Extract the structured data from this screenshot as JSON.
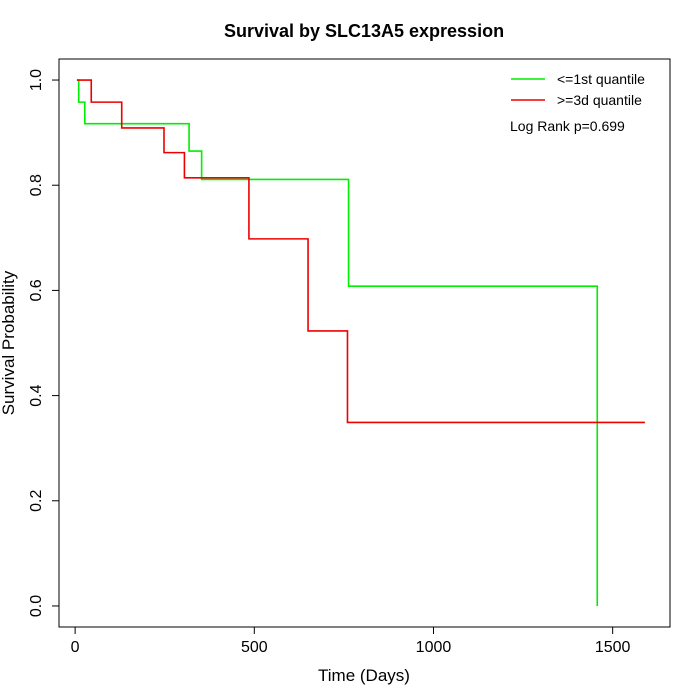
{
  "chart_data": {
    "type": "line",
    "title": "Survival by SLC13A5 expression",
    "xlabel": "Time (Days)",
    "ylabel": "Survival Probability",
    "xlim": [
      -45,
      1660
    ],
    "ylim": [
      -0.04,
      1.04
    ],
    "x_ticks": [
      0,
      500,
      1000,
      1500
    ],
    "y_ticks": [
      0.0,
      0.2,
      0.4,
      0.6,
      0.8,
      1.0
    ],
    "x_tick_labels": [
      "0",
      "500",
      "1000",
      "1500"
    ],
    "y_tick_labels": [
      "0.0",
      "0.2",
      "0.4",
      "0.6",
      "0.8",
      "1.0"
    ],
    "grid": false,
    "legend_position": "top-right",
    "annotation": "Log Rank p=0.699",
    "series": [
      {
        "name": "<=1st quantile",
        "color": "#00ee00",
        "step_points": [
          [
            5,
            1.0
          ],
          [
            10,
            0.958
          ],
          [
            27,
            0.917
          ],
          [
            318,
            0.865
          ],
          [
            353,
            0.811
          ],
          [
            763,
            0.608
          ],
          [
            1457,
            0.0
          ]
        ]
      },
      {
        "name": ">=3d quantile",
        "color": "#ee0000",
        "step_points": [
          [
            5,
            1.0
          ],
          [
            45,
            0.958
          ],
          [
            130,
            0.909
          ],
          [
            248,
            0.862
          ],
          [
            305,
            0.814
          ],
          [
            485,
            0.698
          ],
          [
            650,
            0.523
          ],
          [
            760,
            0.349
          ],
          [
            1590,
            0.349
          ]
        ]
      }
    ]
  }
}
